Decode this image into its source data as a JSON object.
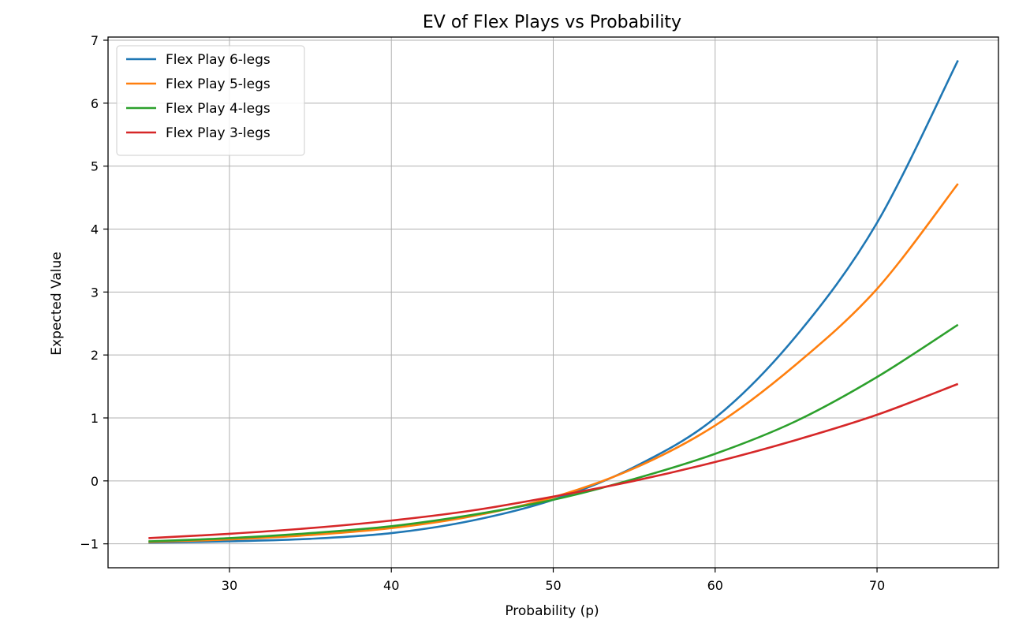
{
  "chart_data": {
    "type": "line",
    "title": "EV of Flex Plays vs Probability",
    "xlabel": "Probability (p)",
    "ylabel": "Expected Value",
    "xlim": [
      22.5,
      77.5
    ],
    "ylim": [
      -1.38,
      7.05
    ],
    "xticks": [
      30,
      40,
      50,
      60,
      70
    ],
    "yticks": [
      -1,
      0,
      1,
      2,
      3,
      4,
      5,
      6,
      7
    ],
    "ytick_labels": [
      "−1",
      "0",
      "1",
      "2",
      "3",
      "4",
      "5",
      "6",
      "7"
    ],
    "grid": true,
    "legend_position": "top-left",
    "x": [
      25,
      30,
      35,
      40,
      45,
      50,
      55,
      60,
      65,
      70,
      75
    ],
    "series": [
      {
        "name": "Flex Play 6-legs",
        "color": "#1f77b4",
        "values": [
          -0.98,
          -0.96,
          -0.92,
          -0.83,
          -0.63,
          -0.3,
          0.22,
          1.0,
          2.3,
          4.1,
          6.68
        ]
      },
      {
        "name": "Flex Play 5-legs",
        "color": "#ff7f0e",
        "values": [
          -0.97,
          -0.93,
          -0.86,
          -0.75,
          -0.56,
          -0.26,
          0.2,
          0.88,
          1.85,
          3.05,
          4.72
        ]
      },
      {
        "name": "Flex Play 4-legs",
        "color": "#2ca02c",
        "values": [
          -0.96,
          -0.91,
          -0.83,
          -0.72,
          -0.54,
          -0.3,
          0.03,
          0.43,
          0.95,
          1.65,
          2.48
        ]
      },
      {
        "name": "Flex Play 3-legs",
        "color": "#d62728",
        "values": [
          -0.91,
          -0.84,
          -0.75,
          -0.63,
          -0.47,
          -0.25,
          0.0,
          0.3,
          0.65,
          1.05,
          1.54
        ]
      }
    ]
  }
}
